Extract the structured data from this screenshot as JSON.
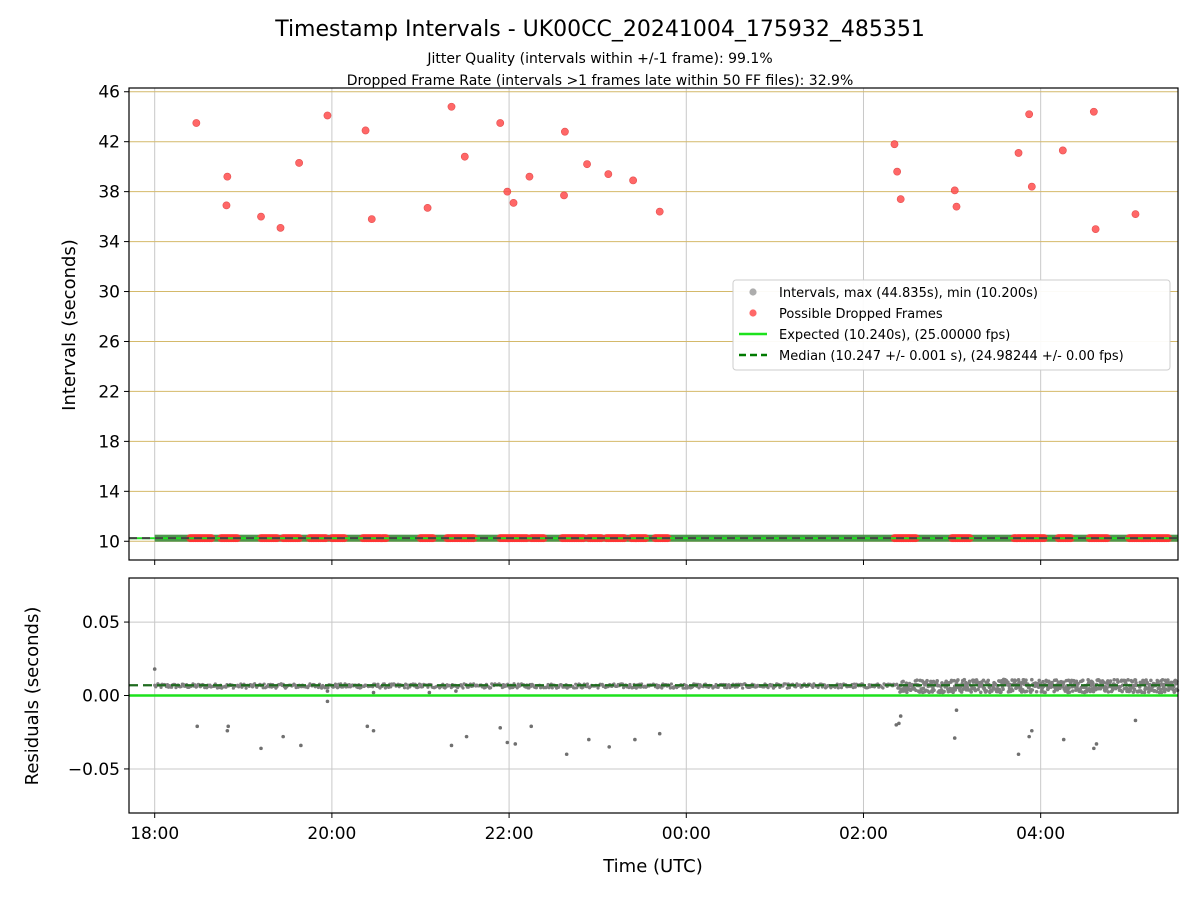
{
  "chart_data": [
    {
      "type": "scatter",
      "title": "Timestamp Intervals - UK00CC_20241004_175932_485351",
      "subtitle_lines": [
        "Jitter Quality (intervals within +/-1 frame): 99.1%",
        "Dropped Frame Rate (intervals >1 frames late within 50 FF files): 32.9%"
      ],
      "xlabel": "",
      "ylabel": "Intervals (seconds)",
      "x_unit": "hours since 18:00 UTC on 2024-10-04",
      "xlim": [
        -0.29,
        11.55
      ],
      "ylim": [
        8.5,
        46.3
      ],
      "yticks": [
        10,
        14,
        18,
        22,
        26,
        30,
        34,
        38,
        42,
        46
      ],
      "ygrid_color": "#d4b96a",
      "xgrid": true,
      "legend_position": "center-right",
      "legend": [
        {
          "label": "Intervals, max (44.835s), min (10.200s)",
          "kind": "dot",
          "color": "#999999"
        },
        {
          "label": "Possible Dropped Frames",
          "kind": "dot",
          "color": "#ff4d4d"
        },
        {
          "label": "Expected (10.240s), (25.00000 fps)",
          "kind": "line",
          "color": "#1de21d"
        },
        {
          "label": "Median (10.247 +/- 0.001 s), (24.98244 +/- 0.00 fps)",
          "kind": "dash",
          "color": "#007a00"
        }
      ],
      "expected": 10.24,
      "median": 10.247,
      "dropped_frames": [
        [
          0.47,
          43.5
        ],
        [
          0.82,
          39.2
        ],
        [
          0.81,
          36.9
        ],
        [
          1.2,
          36.0
        ],
        [
          1.42,
          35.1
        ],
        [
          1.63,
          40.3
        ],
        [
          1.95,
          44.1
        ],
        [
          2.38,
          42.9
        ],
        [
          2.45,
          35.8
        ],
        [
          3.08,
          36.7
        ],
        [
          3.35,
          44.8
        ],
        [
          3.5,
          40.8
        ],
        [
          3.9,
          43.5
        ],
        [
          3.98,
          38.0
        ],
        [
          4.05,
          37.1
        ],
        [
          4.23,
          39.2
        ],
        [
          4.63,
          42.8
        ],
        [
          4.62,
          37.7
        ],
        [
          4.88,
          40.2
        ],
        [
          5.12,
          39.4
        ],
        [
          5.4,
          38.9
        ],
        [
          5.7,
          36.4
        ],
        [
          8.35,
          41.8
        ],
        [
          8.38,
          39.6
        ],
        [
          8.42,
          37.4
        ],
        [
          9.03,
          38.1
        ],
        [
          9.05,
          36.8
        ],
        [
          9.75,
          41.1
        ],
        [
          9.87,
          44.2
        ],
        [
          9.9,
          38.4
        ],
        [
          10.25,
          41.3
        ],
        [
          10.6,
          44.4
        ],
        [
          10.62,
          35.0
        ],
        [
          11.07,
          36.2
        ]
      ],
      "dropped_clusters_at_10": [
        [
          0.4,
          0.65
        ],
        [
          0.75,
          0.95
        ],
        [
          1.2,
          1.4
        ],
        [
          1.45,
          1.65
        ],
        [
          1.75,
          1.95
        ],
        [
          2.0,
          2.15
        ],
        [
          2.35,
          2.62
        ],
        [
          3.0,
          3.15
        ],
        [
          3.3,
          3.6
        ],
        [
          3.9,
          4.2
        ],
        [
          4.25,
          4.4
        ],
        [
          4.6,
          4.85
        ],
        [
          4.9,
          5.05
        ],
        [
          5.1,
          5.3
        ],
        [
          5.38,
          5.55
        ],
        [
          5.65,
          5.8
        ],
        [
          8.35,
          8.6
        ],
        [
          9.0,
          9.2
        ],
        [
          9.7,
          10.05
        ],
        [
          10.2,
          10.35
        ],
        [
          10.55,
          10.75
        ],
        [
          11.0,
          11.45
        ]
      ]
    },
    {
      "type": "scatter",
      "title": "",
      "xlabel": "Time (UTC)",
      "ylabel": "Residuals (seconds)",
      "xlim": [
        -0.29,
        11.55
      ],
      "ylim": [
        -0.08,
        0.08
      ],
      "yticks": [
        0.05,
        0.0,
        -0.05
      ],
      "ytick_labels": [
        "0.05",
        "0.00",
        "−0.05"
      ],
      "xticks": [
        0,
        2,
        4,
        6,
        8,
        10
      ],
      "xtick_labels": [
        "18:00",
        "20:00",
        "22:00",
        "00:00",
        "02:00",
        "04:00"
      ],
      "grid": true,
      "expected_residual": 0.0,
      "median_residual": 0.007,
      "residual_band_quiet": {
        "x_range": [
          0,
          8.4
        ],
        "center": 0.0065,
        "spread": 0.0015
      },
      "residual_band_noisy": {
        "x_range": [
          8.4,
          11.55
        ],
        "center": 0.0065,
        "spread": 0.0045
      },
      "residual_outliers": [
        [
          0.0,
          0.018
        ],
        [
          0.48,
          -0.021
        ],
        [
          0.82,
          -0.024
        ],
        [
          0.83,
          -0.021
        ],
        [
          1.2,
          -0.036
        ],
        [
          1.45,
          -0.028
        ],
        [
          1.65,
          -0.034
        ],
        [
          1.95,
          -0.004
        ],
        [
          1.95,
          0.003
        ],
        [
          2.4,
          -0.021
        ],
        [
          2.47,
          -0.024
        ],
        [
          2.47,
          0.002
        ],
        [
          3.1,
          0.002
        ],
        [
          3.35,
          -0.034
        ],
        [
          3.4,
          0.003
        ],
        [
          3.52,
          -0.028
        ],
        [
          3.9,
          -0.022
        ],
        [
          3.98,
          -0.032
        ],
        [
          4.07,
          -0.033
        ],
        [
          4.25,
          -0.021
        ],
        [
          4.65,
          -0.04
        ],
        [
          4.9,
          -0.03
        ],
        [
          5.13,
          -0.035
        ],
        [
          5.42,
          -0.03
        ],
        [
          5.7,
          -0.026
        ],
        [
          8.37,
          -0.02
        ],
        [
          8.4,
          -0.019
        ],
        [
          8.42,
          -0.014
        ],
        [
          9.03,
          -0.029
        ],
        [
          9.05,
          -0.01
        ],
        [
          9.75,
          -0.04
        ],
        [
          9.87,
          -0.028
        ],
        [
          9.9,
          -0.024
        ],
        [
          10.26,
          -0.03
        ],
        [
          10.6,
          -0.036
        ],
        [
          10.63,
          -0.033
        ],
        [
          11.07,
          -0.017
        ]
      ]
    }
  ]
}
